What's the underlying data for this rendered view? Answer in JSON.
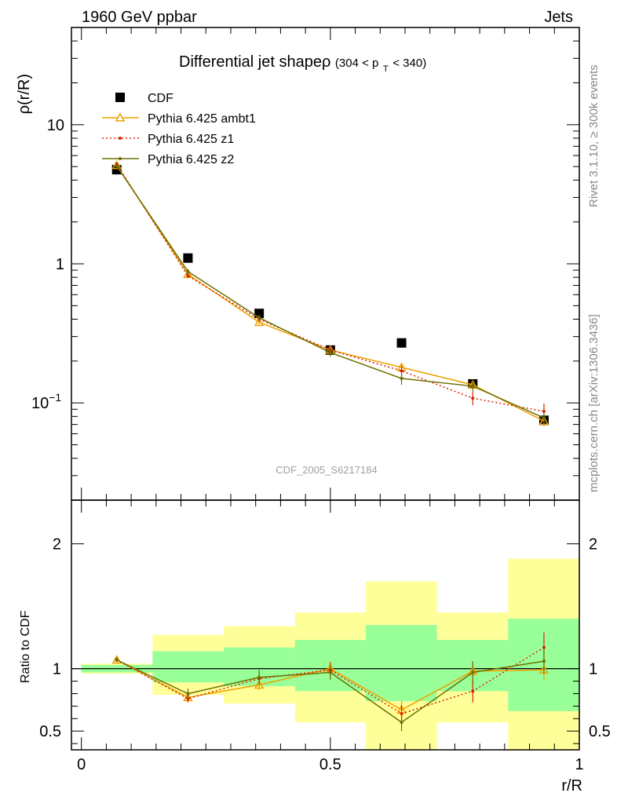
{
  "header": {
    "left": "1960 GeV ppbar",
    "right": "Jets"
  },
  "side_texts": {
    "rivet": "Rivet 3.1.10, ≥ 300k events",
    "mcplots": "mcplots.cern.ch [arXiv:1306.3436]"
  },
  "chart_data": [
    {
      "type": "line",
      "title": "Differential jet shapeρ",
      "title_suffix": "(304 < p",
      "title_sub": "T",
      "title_tail": " < 340)",
      "ylabel": "ρ(r/R)",
      "yscale": "log",
      "ylim": [
        0.02,
        50
      ],
      "xlim": [
        -0.02,
        1.0
      ],
      "watermark": "CDF_2005_S6217184",
      "ytick_labels": [
        {
          "value": 10,
          "label": "10"
        },
        {
          "value": 1,
          "label": "1"
        },
        {
          "value": 0.1,
          "label": "10",
          "exp": "−1"
        }
      ],
      "series": [
        {
          "name": "CDF",
          "style": "data",
          "color": "#000000",
          "x": [
            0.071,
            0.214,
            0.357,
            0.5,
            0.643,
            0.786,
            0.929
          ],
          "y": [
            4.75,
            1.1,
            0.44,
            0.24,
            0.27,
            0.137,
            0.075
          ]
        },
        {
          "name": "Pythia 6.425 ambt1",
          "style": "solid",
          "marker": "triangle",
          "color": "#f0a000",
          "x": [
            0.071,
            0.214,
            0.357,
            0.5,
            0.643,
            0.786,
            0.929
          ],
          "y": [
            5.1,
            0.84,
            0.38,
            0.24,
            0.18,
            0.135,
            0.074
          ],
          "err": [
            0.15,
            0.03,
            0.015,
            0.012,
            0.012,
            0.01,
            0.006
          ]
        },
        {
          "name": "Pythia 6.425 z1",
          "style": "dotted",
          "marker": "dot",
          "color": "#dd2200",
          "x": [
            0.071,
            0.214,
            0.357,
            0.5,
            0.643,
            0.786,
            0.929
          ],
          "y": [
            5.2,
            0.82,
            0.4,
            0.24,
            0.17,
            0.108,
            0.087
          ],
          "err": [
            0.15,
            0.03,
            0.015,
            0.015,
            0.015,
            0.012,
            0.012
          ]
        },
        {
          "name": "Pythia 6.425 z2",
          "style": "solid",
          "marker": "dot",
          "color": "#6b7000",
          "x": [
            0.071,
            0.214,
            0.357,
            0.5,
            0.643,
            0.786,
            0.929
          ],
          "y": [
            5.05,
            0.88,
            0.41,
            0.23,
            0.15,
            0.132,
            0.078
          ],
          "err": [
            0.15,
            0.04,
            0.02,
            0.015,
            0.015,
            0.012,
            0.008
          ]
        }
      ]
    },
    {
      "type": "line",
      "ylabel": "Ratio to CDF",
      "xlabel": "r/R",
      "ylim": [
        0.35,
        2.35
      ],
      "xlim": [
        -0.02,
        1.0
      ],
      "ytick_labels": [
        "0.5",
        "1",
        "2"
      ],
      "ytick_values": [
        0.5,
        1,
        2
      ],
      "xtick_labels": [
        "0",
        "0.5",
        "1"
      ],
      "xtick_values": [
        0,
        0.5,
        1
      ],
      "bands": {
        "edges": [
          0.0,
          0.143,
          0.286,
          0.429,
          0.571,
          0.714,
          0.857,
          1.0
        ],
        "yellow": [
          [
            0.96,
            1.04
          ],
          [
            0.79,
            1.27
          ],
          [
            0.72,
            1.34
          ],
          [
            0.57,
            1.45
          ],
          [
            0.3,
            1.7
          ],
          [
            0.57,
            1.45
          ],
          [
            0.3,
            1.88
          ]
        ],
        "green": [
          [
            0.97,
            1.03
          ],
          [
            0.89,
            1.14
          ],
          [
            0.86,
            1.17
          ],
          [
            0.82,
            1.23
          ],
          [
            0.74,
            1.35
          ],
          [
            0.82,
            1.23
          ],
          [
            0.66,
            1.4
          ]
        ]
      },
      "series": [
        {
          "name": "Pythia 6.425 ambt1",
          "style": "solid",
          "marker": "triangle",
          "color": "#f0a000",
          "x": [
            0.071,
            0.214,
            0.357,
            0.5,
            0.643,
            0.786,
            0.929
          ],
          "y": [
            1.07,
            0.77,
            0.87,
            1.0,
            0.67,
            0.98,
            0.99
          ],
          "err": [
            0.02,
            0.03,
            0.04,
            0.06,
            0.07,
            0.08,
            0.08
          ]
        },
        {
          "name": "Pythia 6.425 z1",
          "style": "dotted",
          "marker": "dot",
          "color": "#dd2200",
          "x": [
            0.071,
            0.214,
            0.357,
            0.5,
            0.643,
            0.786,
            0.929
          ],
          "y": [
            1.07,
            0.76,
            0.92,
            0.99,
            0.64,
            0.82,
            1.17
          ],
          "err": [
            0.02,
            0.03,
            0.05,
            0.06,
            0.07,
            0.09,
            0.12
          ]
        },
        {
          "name": "Pythia 6.425 z2",
          "style": "solid",
          "marker": "dot",
          "color": "#6b7000",
          "x": [
            0.071,
            0.214,
            0.357,
            0.5,
            0.643,
            0.786,
            0.929
          ],
          "y": [
            1.07,
            0.8,
            0.93,
            0.97,
            0.57,
            0.97,
            1.06
          ],
          "err": [
            0.02,
            0.04,
            0.06,
            0.06,
            0.07,
            0.09,
            0.1
          ]
        }
      ]
    }
  ]
}
